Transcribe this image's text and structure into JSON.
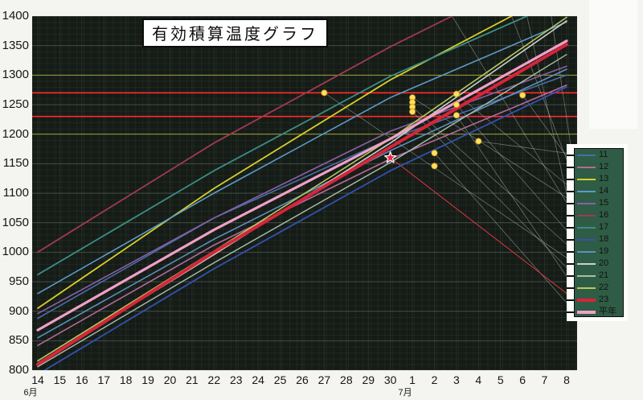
{
  "title": "有効積算温度グラフ",
  "chart_data": {
    "type": "line",
    "title": "有効積算温度グラフ",
    "x_categories": [
      "14",
      "15",
      "16",
      "17",
      "18",
      "19",
      "20",
      "21",
      "22",
      "23",
      "24",
      "25",
      "26",
      "27",
      "28",
      "29",
      "30",
      "1",
      "2",
      "3",
      "4",
      "5",
      "6",
      "7",
      "8"
    ],
    "x_month_labels": [
      {
        "label": "6月",
        "tick_index": 0
      },
      {
        "label": "7月",
        "tick_index": 17
      }
    ],
    "y_ticks": [
      1400,
      1350,
      1300,
      1250,
      1200,
      1150,
      1100,
      1050,
      1000,
      950,
      900,
      850,
      800
    ],
    "ylim": [
      800,
      1400
    ],
    "grid": "on",
    "legend_position": "right",
    "series": [
      {
        "name": "11",
        "color": "#4a6da8",
        "width": 1.6,
        "points": [
          [
            0,
            888
          ],
          [
            8,
            1058
          ],
          [
            16,
            1192
          ],
          [
            24,
            1300
          ]
        ]
      },
      {
        "name": "12",
        "color": "#b46a9a",
        "width": 1.6,
        "points": [
          [
            0,
            842
          ],
          [
            8,
            1012
          ],
          [
            16,
            1158
          ],
          [
            24,
            1283
          ]
        ]
      },
      {
        "name": "13",
        "color": "#d6cf2a",
        "width": 1.8,
        "points": [
          [
            0,
            905
          ],
          [
            8,
            1108
          ],
          [
            16,
            1292
          ],
          [
            21.5,
            1400
          ]
        ]
      },
      {
        "name": "14",
        "color": "#5b9bc8",
        "width": 1.6,
        "points": [
          [
            0,
            930
          ],
          [
            8,
            1100
          ],
          [
            16,
            1262
          ],
          [
            24,
            1390
          ]
        ]
      },
      {
        "name": "15",
        "color": "#8a5fa8",
        "width": 1.6,
        "points": [
          [
            0,
            896
          ],
          [
            8,
            1058
          ],
          [
            16,
            1205
          ],
          [
            24,
            1315
          ]
        ]
      },
      {
        "name": "16",
        "color": "#a03a50",
        "width": 1.8,
        "points": [
          [
            0,
            1000
          ],
          [
            8,
            1185
          ],
          [
            16,
            1348
          ],
          [
            18.8,
            1400
          ]
        ]
      },
      {
        "name": "17",
        "color": "#3d8d85",
        "width": 1.8,
        "points": [
          [
            0,
            962
          ],
          [
            8,
            1138
          ],
          [
            16,
            1298
          ],
          [
            22.2,
            1400
          ]
        ]
      },
      {
        "name": "18",
        "color": "#3353b0",
        "width": 1.8,
        "points": [
          [
            0,
            793
          ],
          [
            8,
            972
          ],
          [
            16,
            1138
          ],
          [
            24,
            1280
          ]
        ]
      },
      {
        "name": "19",
        "color": "#5e8fc0",
        "width": 1.6,
        "points": [
          [
            0,
            855
          ],
          [
            8,
            1022
          ],
          [
            16,
            1172
          ],
          [
            24,
            1310
          ]
        ]
      },
      {
        "name": "20",
        "color": "#c9d2cb",
        "width": 1.6,
        "points": [
          [
            0,
            812
          ],
          [
            8,
            996
          ],
          [
            16,
            1185
          ],
          [
            24,
            1392
          ]
        ]
      },
      {
        "name": "21",
        "color": "#a8bfad",
        "width": 1.4,
        "points": [
          [
            0,
            806
          ],
          [
            8,
            982
          ],
          [
            16,
            1152
          ],
          [
            24,
            1335
          ]
        ]
      },
      {
        "name": "22",
        "color": "#b9c95e",
        "width": 1.6,
        "points": [
          [
            0,
            816
          ],
          [
            8,
            1002
          ],
          [
            16,
            1192
          ],
          [
            24,
            1398
          ]
        ]
      },
      {
        "name": "23",
        "color": "#d6253a",
        "width": 4.0,
        "points": [
          [
            0,
            810
          ],
          [
            8,
            1000
          ],
          [
            16,
            1178
          ],
          [
            24,
            1352
          ]
        ]
      },
      {
        "name": "平年",
        "color": "#efa0c8",
        "width": 3.2,
        "points": [
          [
            0,
            868
          ],
          [
            8,
            1038
          ],
          [
            16,
            1192
          ],
          [
            24,
            1358
          ]
        ]
      }
    ],
    "reference_lines": [
      {
        "value": 1300,
        "color": "#9a9a35",
        "width": 1
      },
      {
        "value": 1270,
        "color": "#ff2a2a",
        "width": 1.6
      },
      {
        "value": 1230,
        "color": "#ff2a2a",
        "width": 1.6
      },
      {
        "value": 1200,
        "color": "#9a9a35",
        "width": 1
      }
    ],
    "markers": {
      "dots": [
        {
          "day": 13,
          "value": 1270
        },
        {
          "day": 17,
          "value": 1262
        },
        {
          "day": 17,
          "value": 1254
        },
        {
          "day": 17,
          "value": 1246
        },
        {
          "day": 17,
          "value": 1238
        },
        {
          "day": 19,
          "value": 1268
        },
        {
          "day": 19,
          "value": 1250
        },
        {
          "day": 19,
          "value": 1232
        },
        {
          "day": 18,
          "value": 1168
        },
        {
          "day": 18,
          "value": 1146
        },
        {
          "day": 20,
          "value": 1188
        },
        {
          "day": 22,
          "value": 1266
        }
      ],
      "dot_color": "#ffdf5e",
      "star": {
        "day": 16,
        "value": 1160,
        "color": "#e8274a"
      }
    },
    "leader_lines": [
      {
        "from_day": 21.5,
        "from_value": 1400,
        "to": "13"
      },
      {
        "from_day": 18.8,
        "from_value": 1400,
        "to": "16"
      },
      {
        "from_day": 22.2,
        "from_value": 1400,
        "to": "17"
      },
      {
        "from_day": 23.3,
        "from_value": 1400,
        "to": "12"
      },
      {
        "from_day": 13,
        "from_value": 1270,
        "to": "20"
      },
      {
        "from_day": 17,
        "from_value": 1262,
        "to": "15"
      },
      {
        "from_day": 17,
        "from_value": 1246,
        "to": "19"
      },
      {
        "from_day": 17,
        "from_value": 1238,
        "to": "21"
      },
      {
        "from_day": 19,
        "from_value": 1268,
        "to": "14"
      },
      {
        "from_day": 19,
        "from_value": 1250,
        "to": "18"
      },
      {
        "from_day": 19,
        "from_value": 1232,
        "to": "22"
      },
      {
        "from_day": 18,
        "from_value": 1168,
        "to": "平年"
      },
      {
        "from_day": 20,
        "from_value": 1188,
        "to": "11"
      },
      {
        "from_day": 22,
        "from_value": 1266,
        "to": "12"
      }
    ],
    "star_leader": {
      "to": "23",
      "color": "#e03545"
    }
  },
  "colors": {
    "plot_background": "#151b16",
    "legend_background": "#2f5c44",
    "page_background": "#f4f4f1",
    "threshold_red": "#ff2a2a",
    "threshold_olive": "#9a9a35"
  }
}
